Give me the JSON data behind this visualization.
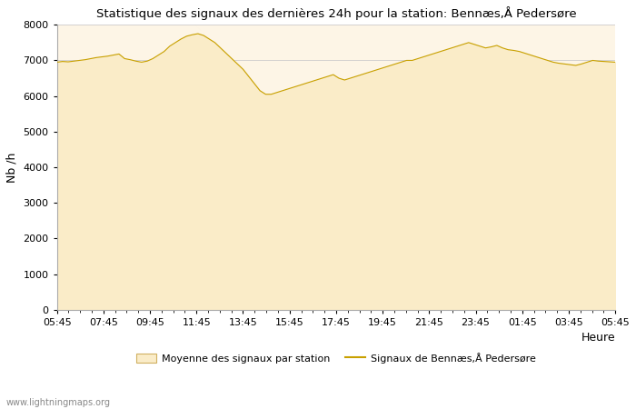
{
  "title": "Statistique des signaux des dernières 24h pour la station: Bennæs,Å Pedersøre",
  "xlabel": "Heure",
  "ylabel": "Nb /h",
  "ylim": [
    0,
    8000
  ],
  "yticks": [
    0,
    1000,
    2000,
    3000,
    4000,
    5000,
    6000,
    7000,
    8000
  ],
  "xtick_labels": [
    "05:45",
    "07:45",
    "09:45",
    "11:45",
    "13:45",
    "15:45",
    "17:45",
    "19:45",
    "21:45",
    "23:45",
    "01:45",
    "03:45",
    "05:45"
  ],
  "fill_color": "#faecc8",
  "line_color": "#c8a000",
  "background_color": "#fdf5e6",
  "grid_color": "#cccccc",
  "legend_fill_label": "Moyenne des signaux par station",
  "legend_line_label": "Signaux de Bennæs,Å Pedersøre",
  "watermark": "www.lightningmaps.org",
  "signal_y": [
    6950,
    6970,
    6960,
    6980,
    7000,
    7020,
    7050,
    7080,
    7100,
    7120,
    7150,
    7180,
    7050,
    7020,
    6980,
    6950,
    6980,
    7050,
    7150,
    7250,
    7400,
    7500,
    7600,
    7680,
    7720,
    7750,
    7700,
    7600,
    7500,
    7350,
    7200,
    7050,
    6900,
    6750,
    6550,
    6350,
    6150,
    6050,
    6050,
    6100,
    6150,
    6200,
    6250,
    6300,
    6350,
    6400,
    6450,
    6500,
    6550,
    6600,
    6500,
    6450,
    6500,
    6550,
    6600,
    6650,
    6700,
    6750,
    6800,
    6850,
    6900,
    6950,
    7000,
    7000,
    7050,
    7100,
    7150,
    7200,
    7250,
    7300,
    7350,
    7400,
    7450,
    7500,
    7450,
    7400,
    7350,
    7380,
    7420,
    7350,
    7300,
    7280,
    7250,
    7200,
    7150,
    7100,
    7050,
    7000,
    6950,
    6920,
    6900,
    6880,
    6860,
    6900,
    6950,
    7000,
    6980,
    6970,
    6960,
    6950
  ]
}
